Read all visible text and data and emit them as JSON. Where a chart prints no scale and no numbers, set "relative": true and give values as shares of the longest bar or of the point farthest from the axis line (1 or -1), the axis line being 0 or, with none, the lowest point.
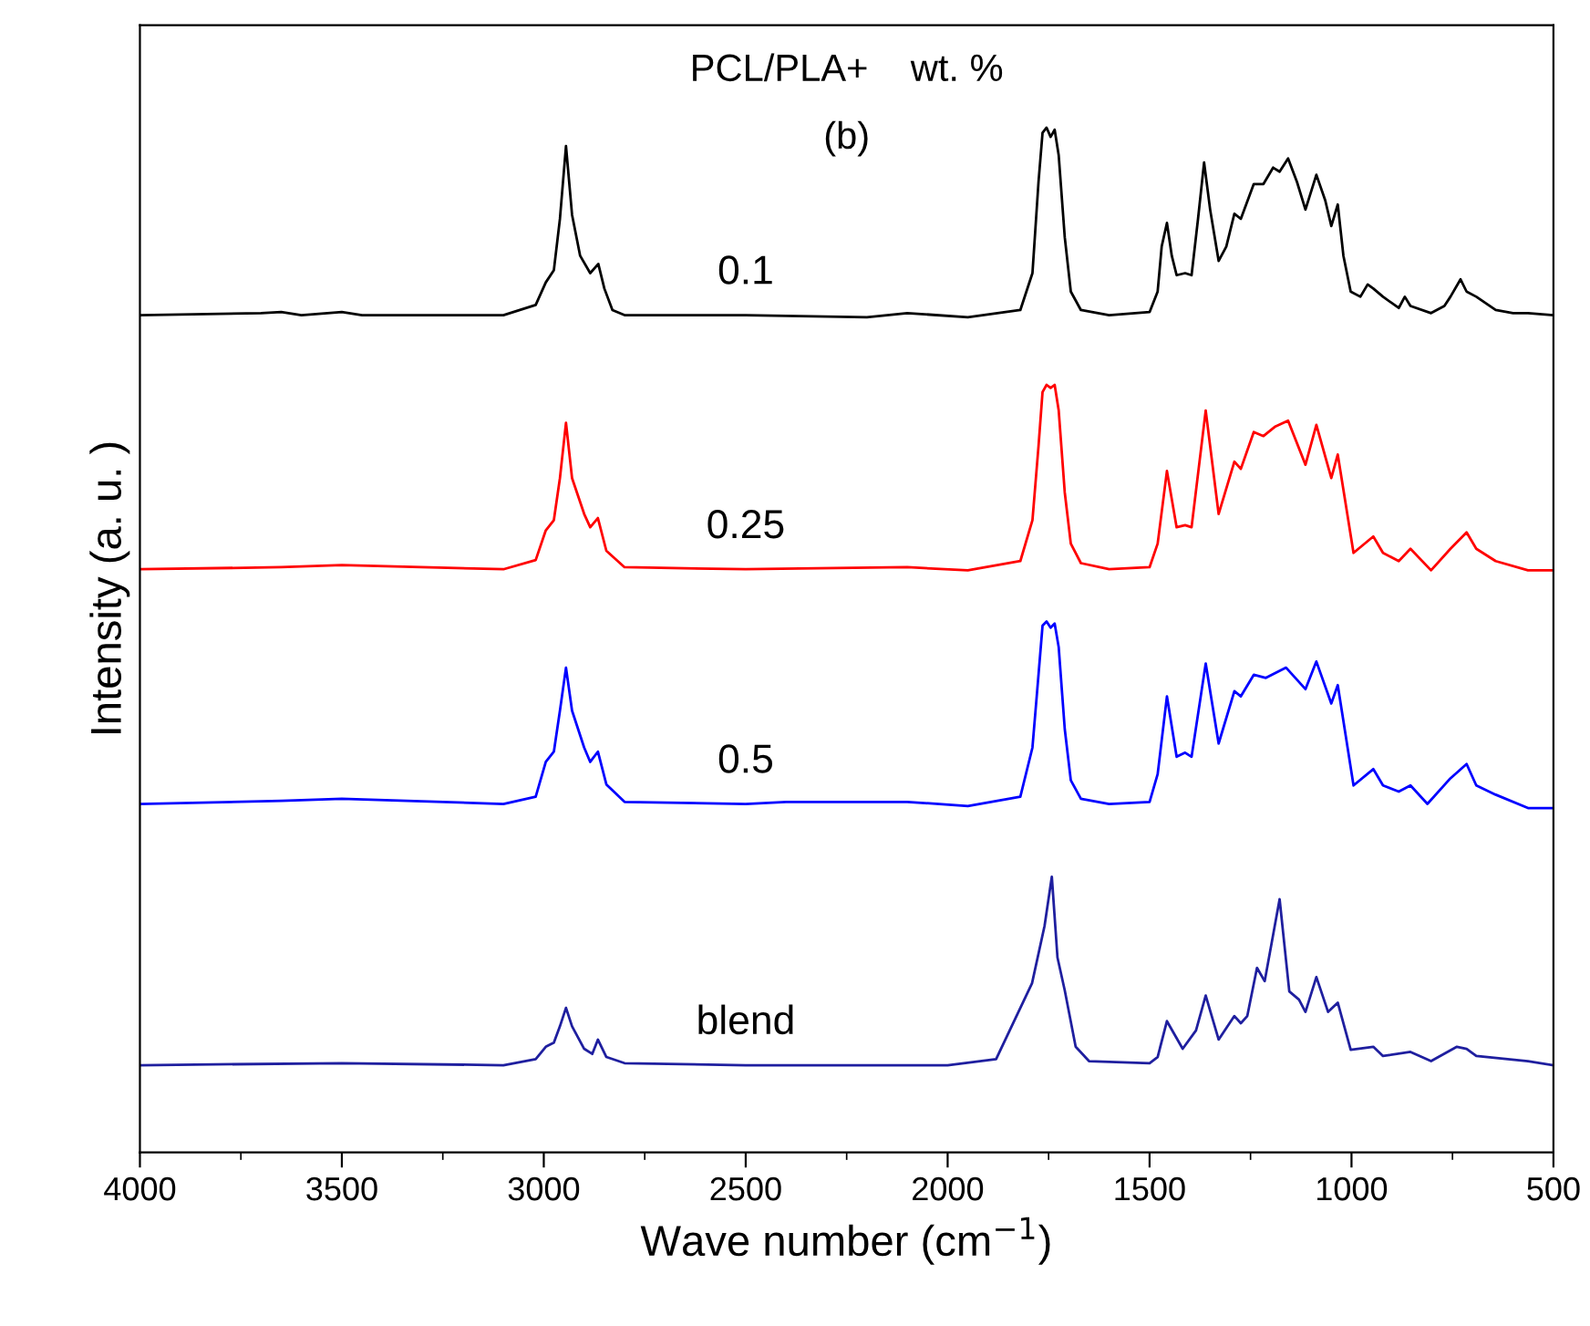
{
  "chart_data": {
    "type": "line",
    "title": "PCL/PLA+    wt. %",
    "xlabel": "Wave number (cm$^{−1}$)",
    "ylabel": "Intensity (a. u. )",
    "annotations": [
      "(b)"
    ],
    "relative": true,
    "xlim": [
      4000,
      500
    ],
    "xticks": [
      4000,
      3500,
      3000,
      2500,
      2000,
      1500,
      1000,
      500
    ],
    "tick_labels": "x",
    "grid": false,
    "legend": false,
    "marker": "none",
    "line_style": "solid",
    "series": [
      {
        "name": "0.1",
        "color": "#000000",
        "x": [
          4000,
          3700,
          3650,
          3600,
          3500,
          3450,
          3100,
          3020,
          2995,
          2975,
          2960,
          2945,
          2930,
          2910,
          2885,
          2865,
          2850,
          2830,
          2800,
          2500,
          2200,
          2100,
          1950,
          1820,
          1790,
          1775,
          1765,
          1755,
          1745,
          1735,
          1725,
          1710,
          1695,
          1670,
          1600,
          1500,
          1480,
          1470,
          1457,
          1445,
          1433,
          1412,
          1396,
          1380,
          1365,
          1350,
          1329,
          1310,
          1290,
          1274,
          1242,
          1218,
          1194,
          1178,
          1157,
          1135,
          1114,
          1087,
          1065,
          1050,
          1034,
          1020,
          1002,
          978,
          960,
          946,
          922,
          883,
          868,
          854,
          803,
          770,
          755,
          730,
          715,
          691,
          643,
          600,
          563,
          500
        ],
        "values": [
          0.817,
          0.819,
          0.82,
          0.817,
          0.82,
          0.817,
          0.817,
          0.827,
          0.849,
          0.861,
          0.911,
          0.982,
          0.915,
          0.875,
          0.858,
          0.867,
          0.843,
          0.822,
          0.817,
          0.817,
          0.815,
          0.819,
          0.815,
          0.822,
          0.858,
          0.947,
          0.995,
          1.0,
          0.991,
          0.998,
          0.973,
          0.893,
          0.84,
          0.822,
          0.817,
          0.82,
          0.84,
          0.884,
          0.907,
          0.875,
          0.856,
          0.858,
          0.856,
          0.911,
          0.966,
          0.92,
          0.87,
          0.884,
          0.916,
          0.911,
          0.945,
          0.945,
          0.961,
          0.957,
          0.97,
          0.947,
          0.92,
          0.954,
          0.929,
          0.904,
          0.925,
          0.875,
          0.84,
          0.835,
          0.847,
          0.843,
          0.835,
          0.824,
          0.835,
          0.826,
          0.819,
          0.826,
          0.835,
          0.852,
          0.84,
          0.835,
          0.822,
          0.819,
          0.819,
          0.817
        ]
      },
      {
        "name": "0.25",
        "color": "#ff0000",
        "x": [
          4000,
          3650,
          3500,
          3100,
          3020,
          2995,
          2975,
          2960,
          2945,
          2930,
          2900,
          2885,
          2866,
          2845,
          2800,
          2500,
          2100,
          1950,
          1820,
          1790,
          1775,
          1765,
          1755,
          1745,
          1735,
          1725,
          1710,
          1695,
          1670,
          1600,
          1500,
          1480,
          1457,
          1433,
          1412,
          1396,
          1361,
          1329,
          1290,
          1274,
          1242,
          1218,
          1190,
          1157,
          1114,
          1087,
          1050,
          1034,
          995,
          946,
          922,
          883,
          854,
          803,
          755,
          715,
          691,
          643,
          563,
          500
        ],
        "values": [
          0.569,
          0.571,
          0.573,
          0.569,
          0.578,
          0.607,
          0.617,
          0.658,
          0.712,
          0.658,
          0.623,
          0.61,
          0.619,
          0.587,
          0.571,
          0.569,
          0.571,
          0.568,
          0.577,
          0.617,
          0.689,
          0.742,
          0.749,
          0.746,
          0.749,
          0.724,
          0.644,
          0.594,
          0.575,
          0.569,
          0.571,
          0.594,
          0.665,
          0.61,
          0.612,
          0.61,
          0.724,
          0.623,
          0.674,
          0.667,
          0.703,
          0.699,
          0.708,
          0.714,
          0.671,
          0.71,
          0.658,
          0.681,
          0.585,
          0.601,
          0.585,
          0.577,
          0.589,
          0.568,
          0.589,
          0.605,
          0.589,
          0.577,
          0.568,
          0.568
        ]
      },
      {
        "name": "0.5",
        "color": "#0000ff",
        "x": [
          4000,
          3650,
          3500,
          3100,
          3020,
          2995,
          2975,
          2960,
          2945,
          2930,
          2900,
          2885,
          2866,
          2845,
          2800,
          2500,
          2400,
          2100,
          1950,
          1820,
          1790,
          1775,
          1765,
          1755,
          1745,
          1735,
          1725,
          1710,
          1695,
          1670,
          1600,
          1500,
          1480,
          1457,
          1433,
          1412,
          1396,
          1361,
          1329,
          1290,
          1274,
          1242,
          1212,
          1162,
          1114,
          1087,
          1050,
          1034,
          995,
          946,
          922,
          883,
          854,
          812,
          755,
          715,
          691,
          643,
          563,
          500
        ],
        "values": [
          0.34,
          0.343,
          0.345,
          0.34,
          0.347,
          0.381,
          0.391,
          0.431,
          0.473,
          0.431,
          0.395,
          0.381,
          0.391,
          0.359,
          0.342,
          0.34,
          0.342,
          0.342,
          0.338,
          0.347,
          0.395,
          0.466,
          0.514,
          0.518,
          0.512,
          0.516,
          0.493,
          0.413,
          0.363,
          0.345,
          0.34,
          0.342,
          0.369,
          0.445,
          0.386,
          0.39,
          0.386,
          0.477,
          0.399,
          0.45,
          0.445,
          0.466,
          0.463,
          0.473,
          0.452,
          0.479,
          0.438,
          0.456,
          0.358,
          0.374,
          0.358,
          0.352,
          0.358,
          0.34,
          0.365,
          0.379,
          0.358,
          0.349,
          0.336,
          0.336
        ]
      },
      {
        "name": "blend",
        "color": "#1f1f9f",
        "x": [
          4000,
          3500,
          3100,
          3020,
          2995,
          2975,
          2960,
          2945,
          2930,
          2900,
          2880,
          2866,
          2845,
          2800,
          2500,
          2000,
          1880,
          1791,
          1760,
          1742,
          1728,
          1710,
          1683,
          1650,
          1500,
          1480,
          1457,
          1418,
          1385,
          1361,
          1329,
          1290,
          1274,
          1258,
          1234,
          1215,
          1178,
          1154,
          1130,
          1114,
          1087,
          1058,
          1034,
          1002,
          946,
          922,
          854,
          803,
          739,
          715,
          691,
          563,
          500
        ],
        "values": [
          0.085,
          0.087,
          0.085,
          0.091,
          0.103,
          0.107,
          0.123,
          0.141,
          0.123,
          0.101,
          0.096,
          0.11,
          0.093,
          0.087,
          0.085,
          0.085,
          0.091,
          0.165,
          0.221,
          0.269,
          0.19,
          0.158,
          0.103,
          0.089,
          0.087,
          0.093,
          0.128,
          0.101,
          0.119,
          0.153,
          0.11,
          0.133,
          0.126,
          0.133,
          0.18,
          0.167,
          0.247,
          0.157,
          0.149,
          0.137,
          0.171,
          0.137,
          0.146,
          0.1,
          0.103,
          0.094,
          0.098,
          0.089,
          0.103,
          0.101,
          0.094,
          0.089,
          0.085
        ]
      }
    ]
  }
}
